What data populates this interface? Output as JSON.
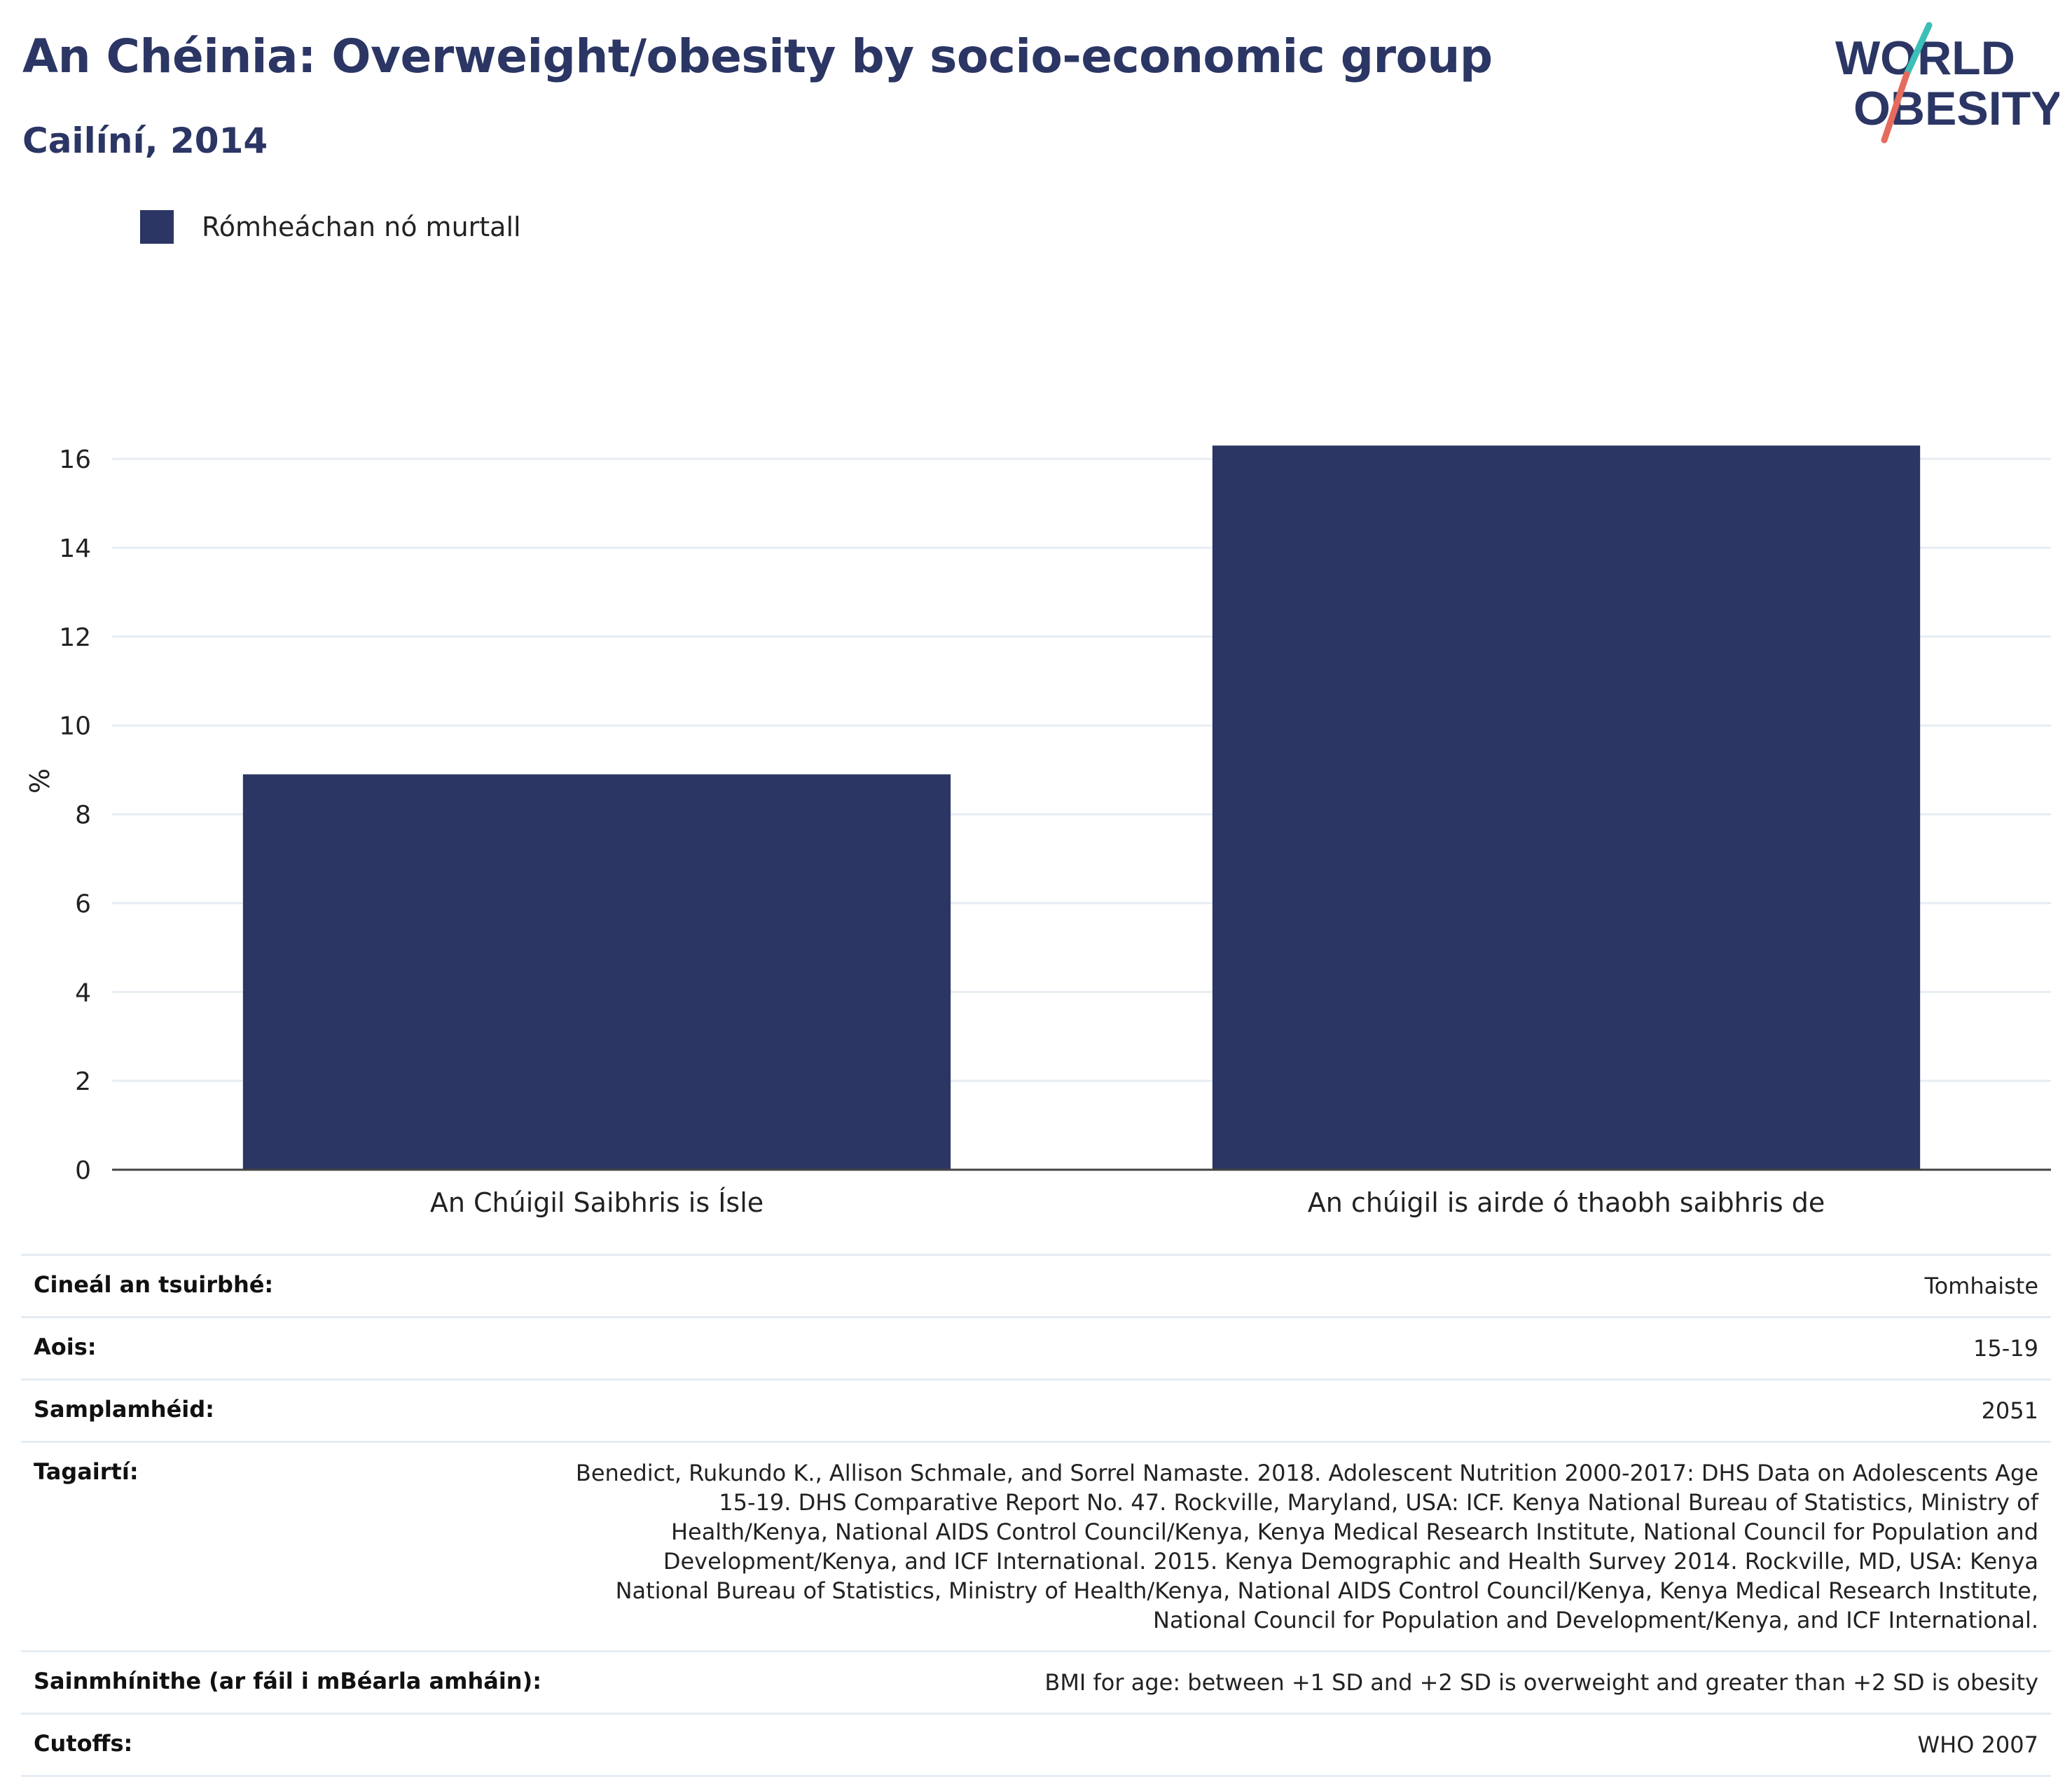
{
  "header": {
    "title": "An Chéinia: Overweight/obesity by socio-economic group",
    "subtitle": "Cailíní, 2014"
  },
  "logo": {
    "line1": "WORLD",
    "line2": "OBESITY",
    "accent_teal": "#3bbfb6",
    "accent_red": "#e56b5d"
  },
  "legend": {
    "label": "Rómheáchan nó murtall",
    "color": "#2b3664"
  },
  "chart_data": {
    "type": "bar",
    "title": "An Chéinia: Overweight/obesity by socio-economic group",
    "subtitle": "Cailíní, 2014",
    "categories": [
      "An Chúigil Saibhris is Ísle",
      "An chúigil is airde ó thaobh saibhris de"
    ],
    "series": [
      {
        "name": "Rómheáchan nó murtall",
        "values": [
          8.9,
          16.3
        ],
        "color": "#2b3664"
      }
    ],
    "xlabel": "",
    "ylabel": "%",
    "ylim": [
      0,
      17.5
    ],
    "yticks": [
      0,
      2,
      4,
      6,
      8,
      10,
      12,
      14,
      16
    ],
    "grid": true,
    "legend_position": "top-left"
  },
  "info": {
    "rows": [
      {
        "label": "Cineál an tsuirbhé:",
        "value": "Tomhaiste"
      },
      {
        "label": "Aois:",
        "value": "15-19"
      },
      {
        "label": "Samplamhéid:",
        "value": "2051"
      },
      {
        "label": "Tagairtí:",
        "value": "Benedict, Rukundo K., Allison Schmale, and Sorrel Namaste. 2018. Adolescent Nutrition 2000-2017: DHS Data on Adolescents Age 15-19. DHS Comparative Report No. 47. Rockville, Maryland, USA: ICF. Kenya National Bureau of Statistics, Ministry of Health/Kenya, National AIDS Control Council/Kenya, Kenya Medical Research Institute, National Council for Population and Development/Kenya, and ICF International. 2015. Kenya Demographic and Health Survey 2014. Rockville, MD, USA: Kenya National Bureau of Statistics, Ministry of Health/Kenya, National AIDS Control Council/Kenya, Kenya Medical Research Institute, National Council for Population and Development/Kenya, and ICF International."
      },
      {
        "label": "Sainmhínithe (ar fáil i mBéarla amháin):",
        "value": "BMI for age: between +1 SD and +2 SD is overweight and greater than +2 SD is obesity"
      },
      {
        "label": "Cutoffs:",
        "value": "WHO 2007"
      }
    ]
  }
}
